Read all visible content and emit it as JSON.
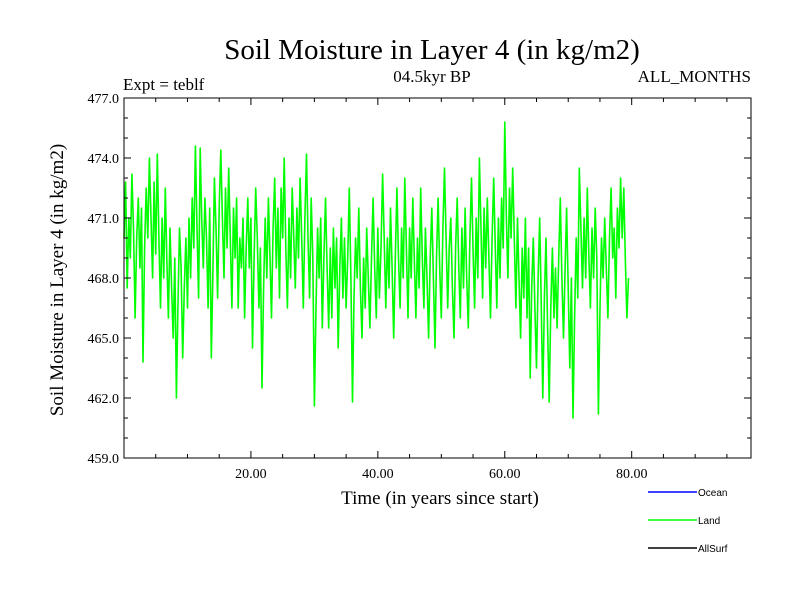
{
  "chart_data": {
    "type": "line",
    "title": "Soil Moisture in Layer 4 (in kg/m2)",
    "subtitle_left": "Expt = teblf",
    "subtitle_center": "04.5kyr BP",
    "subtitle_right": "ALL_MONTHS",
    "xlabel": "Time (in years since start)",
    "ylabel": "Soil Moisture in Layer 4 (in kg/m2)",
    "xlim": [
      0,
      98.8
    ],
    "ylim": [
      459.0,
      477.0
    ],
    "x_ticks": [
      20,
      40,
      60,
      80
    ],
    "x_tick_labels": [
      "20.00",
      "40.00",
      "60.00",
      "80.00"
    ],
    "y_ticks": [
      459,
      462,
      465,
      468,
      471,
      474,
      477
    ],
    "y_tick_labels": [
      "459.0",
      "462.0",
      "465.0",
      "468.0",
      "471.0",
      "474.0",
      "477.0"
    ],
    "grid": false,
    "legend": [
      {
        "name": "Ocean",
        "color": "#0000ff"
      },
      {
        "name": "Land",
        "color": "#00ff00"
      },
      {
        "name": "AllSurf",
        "color": "#000000"
      }
    ],
    "series": [
      {
        "name": "Land",
        "color": "#00ff00",
        "x_start": 0,
        "x_step": 0.25,
        "values": [
          470.0,
          472.8,
          467.5,
          471.0,
          469.0,
          473.2,
          470.5,
          466.0,
          470.0,
          472.0,
          468.5,
          471.5,
          463.8,
          469.5,
          472.5,
          470.0,
          474.0,
          471.0,
          468.0,
          472.8,
          469.2,
          474.2,
          470.0,
          466.5,
          471.0,
          468.0,
          472.5,
          469.0,
          466.0,
          470.5,
          467.5,
          465.0,
          469.0,
          462.0,
          466.5,
          470.5,
          468.5,
          464.0,
          467.5,
          470.0,
          466.5,
          471.0,
          468.0,
          472.0,
          469.5,
          474.6,
          470.5,
          467.0,
          474.5,
          471.0,
          468.5,
          472.0,
          470.0,
          466.5,
          471.5,
          464.0,
          468.0,
          473.0,
          470.5,
          467.0,
          471.5,
          474.4,
          471.0,
          468.0,
          472.5,
          469.5,
          473.5,
          470.0,
          466.5,
          471.5,
          469.0,
          472.0,
          466.5,
          470.0,
          468.5,
          471.0,
          466.0,
          469.5,
          472.0,
          468.5,
          471.0,
          464.5,
          469.0,
          472.5,
          470.0,
          466.5,
          469.5,
          462.5,
          467.5,
          471.0,
          468.0,
          472.0,
          469.0,
          466.0,
          470.5,
          473.0,
          468.5,
          471.5,
          467.0,
          472.5,
          470.0,
          474.0,
          469.5,
          466.5,
          471.0,
          468.0,
          472.5,
          470.0,
          467.5,
          471.5,
          469.0,
          473.0,
          470.0,
          466.5,
          471.0,
          474.2,
          470.0,
          467.0,
          472.0,
          469.0,
          461.6,
          466.5,
          470.5,
          468.0,
          471.0,
          465.5,
          469.0,
          472.0,
          468.5,
          465.5,
          469.5,
          466.0,
          470.5,
          467.5,
          470.0,
          464.5,
          468.5,
          471.0,
          467.0,
          470.0,
          466.5,
          469.0,
          472.5,
          468.0,
          461.8,
          467.0,
          470.0,
          468.0,
          471.5,
          467.5,
          465.0,
          469.0,
          466.5,
          470.5,
          468.0,
          465.5,
          469.0,
          472.0,
          468.5,
          466.0,
          470.5,
          467.0,
          469.5,
          473.2,
          470.0,
          466.5,
          470.0,
          467.5,
          471.5,
          468.5,
          465.0,
          469.0,
          472.5,
          469.0,
          466.5,
          470.5,
          468.0,
          473.0,
          469.5,
          466.0,
          470.5,
          468.0,
          472.0,
          469.0,
          466.0,
          470.0,
          467.5,
          472.5,
          469.0,
          466.5,
          470.5,
          468.0,
          465.0,
          469.0,
          471.5,
          468.0,
          464.5,
          469.0,
          472.0,
          468.5,
          466.0,
          470.5,
          473.5,
          470.0,
          466.5,
          469.5,
          471.0,
          467.5,
          465.0,
          469.5,
          472.0,
          468.5,
          466.0,
          470.5,
          467.5,
          471.5,
          468.0,
          465.5,
          470.0,
          473.0,
          469.5,
          466.5,
          471.0,
          468.0,
          474.0,
          470.5,
          467.0,
          471.5,
          468.5,
          472.0,
          469.0,
          466.0,
          470.0,
          473.0,
          469.5,
          466.5,
          471.0,
          468.0,
          472.0,
          469.5,
          475.8,
          471.0,
          468.0,
          472.5,
          470.0,
          473.5,
          470.0,
          466.5,
          471.0,
          468.0,
          465.0,
          469.5,
          467.0,
          471.0,
          466.0,
          469.5,
          463.0,
          467.5,
          470.0,
          466.5,
          463.5,
          468.0,
          471.0,
          466.5,
          462.0,
          467.0,
          470.0,
          465.5,
          461.8,
          466.5,
          469.5,
          466.0,
          468.5,
          465.5,
          469.0,
          472.0,
          468.0,
          465.0,
          468.5,
          471.5,
          467.5,
          463.5,
          468.0,
          461.0,
          466.0,
          470.0,
          467.0,
          473.5,
          470.5,
          467.5,
          471.0,
          468.0,
          472.5,
          469.0,
          466.5,
          470.5,
          468.0,
          471.5,
          469.0,
          461.2,
          466.5,
          470.0,
          468.0,
          471.0,
          468.5,
          466.0,
          470.0,
          472.5,
          469.0,
          470.5,
          467.0,
          471.5,
          469.5,
          473.0,
          470.0,
          472.5,
          469.0,
          466.0,
          468.0
        ]
      }
    ]
  }
}
